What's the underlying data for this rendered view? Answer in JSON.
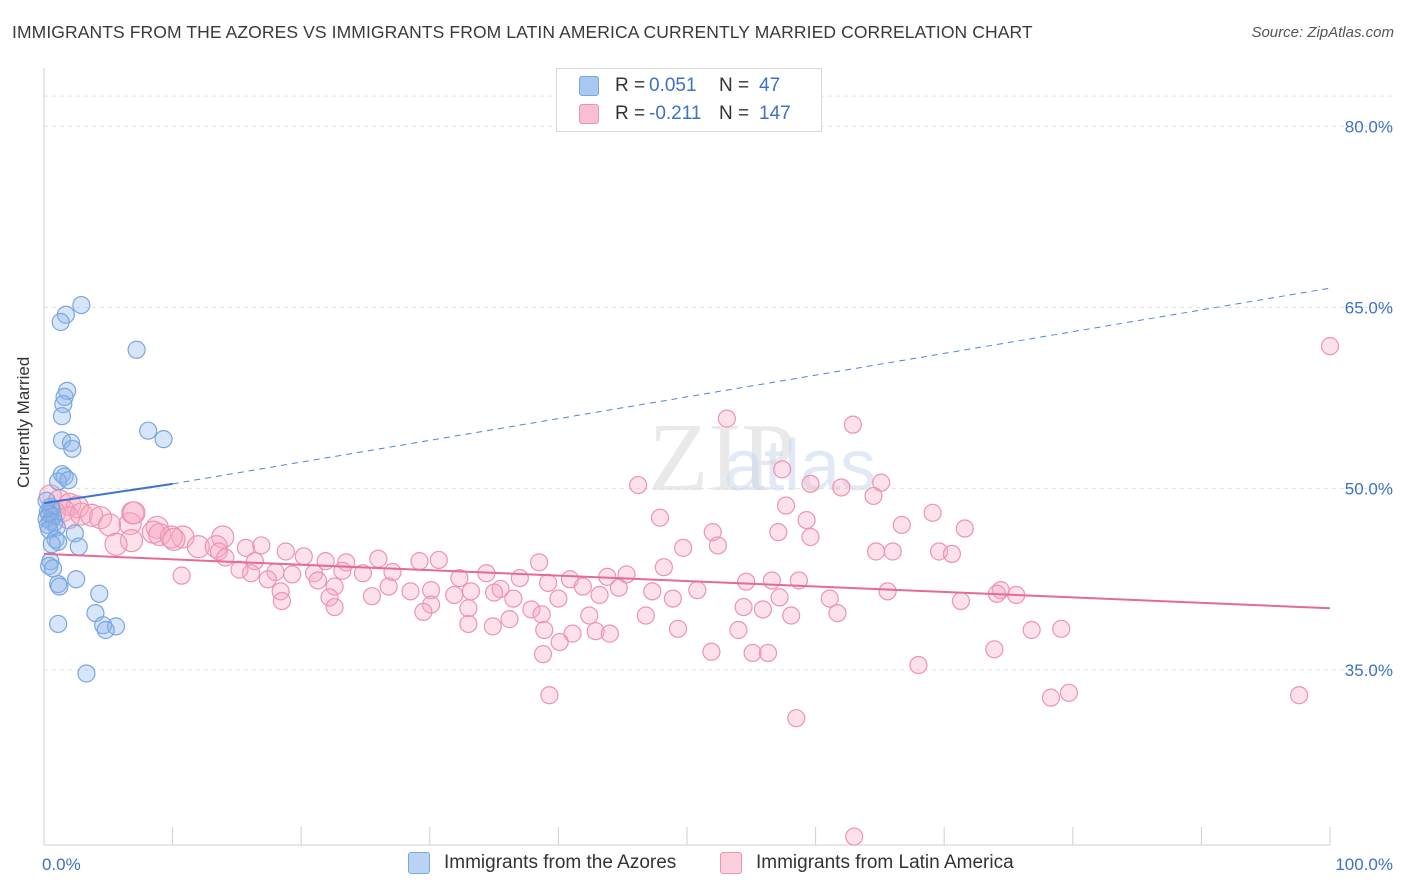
{
  "title": "IMMIGRANTS FROM THE AZORES VS IMMIGRANTS FROM LATIN AMERICA CURRENTLY MARRIED CORRELATION CHART",
  "source": "Source: ZipAtlas.com",
  "watermark": "ZIPatlas",
  "legend": {
    "rows": [
      {
        "r_label": "R =",
        "r_value": "0.051",
        "n_label": "N =",
        "n_value": "47",
        "color": "#a8c8f0",
        "border": "#7aa6e0"
      },
      {
        "r_label": "R =",
        "r_value": "-0.211",
        "n_label": "N =",
        "n_value": "147",
        "color": "#f8bfd0",
        "border": "#ee93b0"
      }
    ]
  },
  "bottom_legend": [
    {
      "label": "Immigrants from the Azores",
      "color": "#b9d3f3",
      "border": "#7aa6e0"
    },
    {
      "label": "Immigrants from Latin America",
      "color": "#fbd0dc",
      "border": "#ee93b0"
    }
  ],
  "chart_data": {
    "type": "scatter",
    "xlabel": "",
    "ylabel": "Currently Married",
    "x_ticks": [
      "0.0%",
      "100.0%"
    ],
    "y_ticks": [
      "80.0%",
      "65.0%",
      "50.0%",
      "35.0%"
    ],
    "y_tick_values": [
      80,
      65,
      50,
      35
    ],
    "xlim": [
      0,
      100
    ],
    "ylim": [
      20.5,
      84
    ],
    "grid": true,
    "series": [
      {
        "name": "Immigrants from the Azores",
        "color": "#7aa6e0",
        "fill": "rgba(140,180,235,0.35)",
        "trend_solid": {
          "x": [
            0,
            10
          ],
          "y": [
            48.8,
            50.4
          ]
        },
        "trend_dashed": {
          "x": [
            10,
            100
          ],
          "y": [
            50.4,
            66.6
          ]
        },
        "points": [
          [
            2.9,
            65.2
          ],
          [
            1.7,
            64.4
          ],
          [
            1.3,
            63.8
          ],
          [
            7.2,
            61.5
          ],
          [
            1.8,
            58.1
          ],
          [
            1.6,
            57.6
          ],
          [
            1.5,
            57.0
          ],
          [
            1.4,
            56.0
          ],
          [
            8.1,
            54.8
          ],
          [
            9.3,
            54.1
          ],
          [
            1.4,
            54.0
          ],
          [
            2.1,
            53.8
          ],
          [
            2.2,
            53.3
          ],
          [
            1.4,
            51.2
          ],
          [
            1.6,
            51.0
          ],
          [
            1.1,
            50.6
          ],
          [
            1.9,
            50.7
          ],
          [
            0.5,
            48.5
          ],
          [
            0.6,
            48.3
          ],
          [
            0.3,
            48.1
          ],
          [
            0.4,
            47.9
          ],
          [
            0.7,
            47.7
          ],
          [
            0.2,
            47.5
          ],
          [
            0.5,
            47.3
          ],
          [
            0.8,
            47.2
          ],
          [
            0.3,
            47.0
          ],
          [
            1.0,
            46.8
          ],
          [
            0.4,
            46.6
          ],
          [
            2.4,
            46.3
          ],
          [
            0.9,
            45.8
          ],
          [
            1.1,
            45.6
          ],
          [
            0.6,
            45.4
          ],
          [
            2.7,
            45.2
          ],
          [
            0.5,
            44.0
          ],
          [
            0.4,
            43.6
          ],
          [
            0.7,
            43.4
          ],
          [
            2.5,
            42.5
          ],
          [
            1.1,
            42.1
          ],
          [
            1.2,
            41.9
          ],
          [
            4.3,
            41.3
          ],
          [
            4.0,
            39.7
          ],
          [
            1.1,
            38.8
          ],
          [
            4.6,
            38.7
          ],
          [
            5.6,
            38.6
          ],
          [
            4.8,
            38.3
          ],
          [
            3.3,
            34.7
          ],
          [
            0.2,
            49.0
          ]
        ]
      },
      {
        "name": "Immigrants from Latin America",
        "color": "#ee93b0",
        "fill": "rgba(246,170,195,0.35)",
        "trend_solid": {
          "x": [
            0,
            100
          ],
          "y": [
            44.6,
            40.1
          ]
        },
        "points": [
          [
            100,
            61.8
          ],
          [
            53.1,
            55.8
          ],
          [
            62.9,
            55.3
          ],
          [
            57.4,
            51.6
          ],
          [
            59.6,
            50.4
          ],
          [
            46.2,
            50.3
          ],
          [
            65.1,
            50.5
          ],
          [
            62.0,
            50.1
          ],
          [
            64.5,
            49.4
          ],
          [
            0.5,
            49.4
          ],
          [
            1.2,
            49.0
          ],
          [
            2.0,
            48.7
          ],
          [
            2.6,
            48.5
          ],
          [
            1.5,
            48.2
          ],
          [
            0.8,
            48.0
          ],
          [
            2.9,
            47.9
          ],
          [
            3.7,
            47.8
          ],
          [
            1.9,
            47.6
          ],
          [
            4.4,
            47.6
          ],
          [
            47.9,
            47.6
          ],
          [
            59.3,
            47.4
          ],
          [
            69.1,
            48.0
          ],
          [
            6.9,
            48.0
          ],
          [
            57.7,
            48.6
          ],
          [
            5.1,
            47.0
          ],
          [
            6.7,
            47.1
          ],
          [
            8.8,
            46.8
          ],
          [
            66.7,
            47.0
          ],
          [
            8.5,
            46.4
          ],
          [
            9.0,
            46.2
          ],
          [
            10.8,
            46.0
          ],
          [
            13.9,
            46.0
          ],
          [
            9.9,
            46.0
          ],
          [
            6.8,
            45.7
          ],
          [
            5.6,
            45.4
          ],
          [
            10.1,
            45.8
          ],
          [
            52.0,
            46.4
          ],
          [
            57.1,
            46.4
          ],
          [
            59.6,
            46.0
          ],
          [
            71.6,
            46.7
          ],
          [
            52.4,
            45.3
          ],
          [
            49.7,
            45.1
          ],
          [
            12.0,
            45.2
          ],
          [
            13.4,
            45.2
          ],
          [
            15.7,
            45.1
          ],
          [
            16.9,
            45.3
          ],
          [
            18.8,
            44.8
          ],
          [
            20.2,
            44.4
          ],
          [
            13.6,
            44.8
          ],
          [
            14.1,
            44.3
          ],
          [
            16.4,
            44.0
          ],
          [
            21.9,
            44.0
          ],
          [
            23.5,
            43.9
          ],
          [
            26.0,
            44.2
          ],
          [
            29.2,
            44.0
          ],
          [
            30.7,
            44.1
          ],
          [
            38.5,
            43.9
          ],
          [
            48.2,
            43.5
          ],
          [
            64.7,
            44.8
          ],
          [
            66.0,
            44.8
          ],
          [
            69.6,
            44.8
          ],
          [
            70.6,
            44.6
          ],
          [
            15.2,
            43.3
          ],
          [
            16.1,
            43.0
          ],
          [
            18.0,
            43.1
          ],
          [
            19.3,
            42.9
          ],
          [
            21.0,
            43.0
          ],
          [
            23.2,
            43.2
          ],
          [
            24.8,
            43.0
          ],
          [
            27.1,
            43.1
          ],
          [
            32.3,
            42.6
          ],
          [
            34.4,
            43.0
          ],
          [
            37.0,
            42.6
          ],
          [
            40.9,
            42.5
          ],
          [
            43.8,
            42.7
          ],
          [
            45.3,
            42.9
          ],
          [
            54.6,
            42.3
          ],
          [
            56.6,
            42.4
          ],
          [
            58.7,
            42.4
          ],
          [
            10.7,
            42.8
          ],
          [
            17.4,
            42.5
          ],
          [
            21.3,
            42.4
          ],
          [
            22.6,
            41.9
          ],
          [
            26.8,
            41.9
          ],
          [
            28.5,
            41.5
          ],
          [
            30.1,
            41.6
          ],
          [
            35.5,
            41.7
          ],
          [
            39.2,
            42.2
          ],
          [
            41.9,
            41.9
          ],
          [
            44.7,
            41.8
          ],
          [
            47.3,
            41.5
          ],
          [
            50.8,
            41.6
          ],
          [
            65.6,
            41.5
          ],
          [
            74.4,
            41.6
          ],
          [
            75.6,
            41.2
          ],
          [
            18.4,
            41.5
          ],
          [
            22.2,
            41.0
          ],
          [
            25.5,
            41.1
          ],
          [
            31.9,
            41.2
          ],
          [
            33.2,
            41.5
          ],
          [
            35.0,
            41.4
          ],
          [
            36.5,
            40.9
          ],
          [
            40.0,
            40.9
          ],
          [
            43.2,
            41.2
          ],
          [
            30.1,
            40.4
          ],
          [
            33.0,
            40.1
          ],
          [
            37.9,
            40.0
          ],
          [
            48.9,
            40.9
          ],
          [
            57.2,
            41.0
          ],
          [
            61.1,
            40.9
          ],
          [
            71.3,
            40.7
          ],
          [
            74.1,
            41.3
          ],
          [
            18.5,
            40.7
          ],
          [
            22.6,
            40.2
          ],
          [
            29.5,
            39.8
          ],
          [
            36.2,
            39.2
          ],
          [
            38.7,
            39.6
          ],
          [
            42.4,
            39.5
          ],
          [
            46.8,
            39.5
          ],
          [
            55.9,
            40.0
          ],
          [
            61.7,
            39.7
          ],
          [
            54.4,
            40.2
          ],
          [
            58.1,
            39.5
          ],
          [
            33.0,
            38.8
          ],
          [
            34.9,
            38.6
          ],
          [
            38.9,
            38.3
          ],
          [
            41.1,
            38.0
          ],
          [
            42.9,
            38.2
          ],
          [
            44.0,
            38.0
          ],
          [
            49.3,
            38.4
          ],
          [
            54.0,
            38.3
          ],
          [
            51.9,
            36.5
          ],
          [
            55.1,
            36.4
          ],
          [
            56.3,
            36.4
          ],
          [
            73.9,
            36.7
          ],
          [
            76.8,
            38.3
          ],
          [
            79.1,
            38.4
          ],
          [
            40.1,
            37.3
          ],
          [
            38.8,
            36.3
          ],
          [
            68.0,
            35.4
          ],
          [
            79.7,
            33.1
          ],
          [
            78.3,
            32.7
          ],
          [
            97.6,
            32.9
          ],
          [
            39.3,
            32.9
          ],
          [
            58.5,
            31.0
          ],
          [
            63.0,
            21.2
          ],
          [
            7.0,
            48.0
          ]
        ]
      }
    ]
  }
}
